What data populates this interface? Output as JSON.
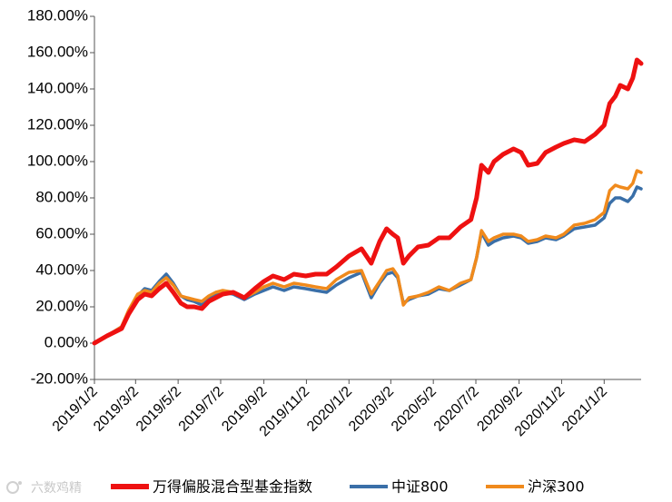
{
  "watermark": "六数鸡精",
  "chart_data": {
    "type": "line",
    "title": "",
    "xlabel": "",
    "ylabel": "",
    "ylim": [
      -0.2,
      1.8
    ],
    "y_ticks": [
      -0.2,
      0,
      0.2,
      0.4,
      0.6,
      0.8,
      1.0,
      1.2,
      1.4,
      1.6,
      1.8
    ],
    "y_tick_labels": [
      "-20.00%",
      "0.00%",
      "20.00%",
      "40.00%",
      "60.00%",
      "80.00%",
      "100.00%",
      "120.00%",
      "140.00%",
      "160.00%",
      "180.00%"
    ],
    "x_ticks": [
      "2019/1/2",
      "2019/3/2",
      "2019/5/2",
      "2019/7/2",
      "2019/9/2",
      "2019/11/2",
      "2020/1/2",
      "2020/3/2",
      "2020/5/2",
      "2020/7/2",
      "2020/9/2",
      "2020/11/2",
      "2021/1/2"
    ],
    "x_range": [
      "2019-01-02",
      "2021-02-24"
    ],
    "grid": false,
    "legend": "bottom",
    "series": [
      {
        "name": "万得偏股混合型基金指数",
        "color": "#ee1111",
        "points": [
          [
            "2019-01-02",
            0.0
          ],
          [
            "2019-01-20",
            0.04
          ],
          [
            "2019-02-10",
            0.08
          ],
          [
            "2019-02-20",
            0.16
          ],
          [
            "2019-03-05",
            0.24
          ],
          [
            "2019-03-15",
            0.27
          ],
          [
            "2019-03-25",
            0.26
          ],
          [
            "2019-04-05",
            0.3
          ],
          [
            "2019-04-15",
            0.33
          ],
          [
            "2019-04-25",
            0.28
          ],
          [
            "2019-05-06",
            0.22
          ],
          [
            "2019-05-15",
            0.2
          ],
          [
            "2019-05-25",
            0.2
          ],
          [
            "2019-06-05",
            0.19
          ],
          [
            "2019-06-15",
            0.23
          ],
          [
            "2019-06-25",
            0.25
          ],
          [
            "2019-07-05",
            0.27
          ],
          [
            "2019-07-20",
            0.28
          ],
          [
            "2019-08-05",
            0.25
          ],
          [
            "2019-08-20",
            0.3
          ],
          [
            "2019-09-02",
            0.34
          ],
          [
            "2019-09-15",
            0.37
          ],
          [
            "2019-10-01",
            0.35
          ],
          [
            "2019-10-15",
            0.38
          ],
          [
            "2019-11-01",
            0.37
          ],
          [
            "2019-11-15",
            0.38
          ],
          [
            "2019-12-01",
            0.38
          ],
          [
            "2019-12-15",
            0.42
          ],
          [
            "2020-01-02",
            0.48
          ],
          [
            "2020-01-20",
            0.52
          ],
          [
            "2020-02-03",
            0.44
          ],
          [
            "2020-02-15",
            0.56
          ],
          [
            "2020-02-25",
            0.63
          ],
          [
            "2020-03-05",
            0.6
          ],
          [
            "2020-03-12",
            0.58
          ],
          [
            "2020-03-20",
            0.44
          ],
          [
            "2020-03-28",
            0.48
          ],
          [
            "2020-04-10",
            0.53
          ],
          [
            "2020-04-25",
            0.54
          ],
          [
            "2020-05-10",
            0.58
          ],
          [
            "2020-05-25",
            0.58
          ],
          [
            "2020-06-10",
            0.64
          ],
          [
            "2020-06-25",
            0.68
          ],
          [
            "2020-07-03",
            0.8
          ],
          [
            "2020-07-10",
            0.98
          ],
          [
            "2020-07-20",
            0.94
          ],
          [
            "2020-07-28",
            1.0
          ],
          [
            "2020-08-10",
            1.04
          ],
          [
            "2020-08-25",
            1.07
          ],
          [
            "2020-09-05",
            1.05
          ],
          [
            "2020-09-15",
            0.98
          ],
          [
            "2020-09-28",
            0.99
          ],
          [
            "2020-10-10",
            1.05
          ],
          [
            "2020-10-25",
            1.08
          ],
          [
            "2020-11-05",
            1.1
          ],
          [
            "2020-11-20",
            1.12
          ],
          [
            "2020-12-05",
            1.11
          ],
          [
            "2020-12-20",
            1.15
          ],
          [
            "2021-01-02",
            1.2
          ],
          [
            "2021-01-10",
            1.32
          ],
          [
            "2021-01-18",
            1.36
          ],
          [
            "2021-01-25",
            1.42
          ],
          [
            "2021-02-05",
            1.4
          ],
          [
            "2021-02-12",
            1.46
          ],
          [
            "2021-02-18",
            1.56
          ],
          [
            "2021-02-24",
            1.54
          ]
        ]
      },
      {
        "name": "中证800",
        "color": "#3a6fa8",
        "points": [
          [
            "2019-01-02",
            0.0
          ],
          [
            "2019-01-20",
            0.04
          ],
          [
            "2019-02-10",
            0.09
          ],
          [
            "2019-02-20",
            0.17
          ],
          [
            "2019-03-05",
            0.26
          ],
          [
            "2019-03-15",
            0.3
          ],
          [
            "2019-03-25",
            0.29
          ],
          [
            "2019-04-05",
            0.34
          ],
          [
            "2019-04-15",
            0.38
          ],
          [
            "2019-04-25",
            0.33
          ],
          [
            "2019-05-06",
            0.26
          ],
          [
            "2019-05-15",
            0.24
          ],
          [
            "2019-05-25",
            0.23
          ],
          [
            "2019-06-05",
            0.21
          ],
          [
            "2019-06-15",
            0.25
          ],
          [
            "2019-06-25",
            0.27
          ],
          [
            "2019-07-05",
            0.28
          ],
          [
            "2019-07-20",
            0.27
          ],
          [
            "2019-08-05",
            0.24
          ],
          [
            "2019-08-20",
            0.27
          ],
          [
            "2019-09-02",
            0.29
          ],
          [
            "2019-09-15",
            0.31
          ],
          [
            "2019-10-01",
            0.29
          ],
          [
            "2019-10-15",
            0.31
          ],
          [
            "2019-11-01",
            0.3
          ],
          [
            "2019-11-15",
            0.29
          ],
          [
            "2019-12-01",
            0.28
          ],
          [
            "2019-12-15",
            0.32
          ],
          [
            "2020-01-02",
            0.36
          ],
          [
            "2020-01-20",
            0.39
          ],
          [
            "2020-02-03",
            0.25
          ],
          [
            "2020-02-15",
            0.33
          ],
          [
            "2020-02-25",
            0.38
          ],
          [
            "2020-03-05",
            0.39
          ],
          [
            "2020-03-12",
            0.36
          ],
          [
            "2020-03-20",
            0.22
          ],
          [
            "2020-03-28",
            0.24
          ],
          [
            "2020-04-10",
            0.26
          ],
          [
            "2020-04-25",
            0.27
          ],
          [
            "2020-05-10",
            0.3
          ],
          [
            "2020-05-25",
            0.29
          ],
          [
            "2020-06-10",
            0.32
          ],
          [
            "2020-06-25",
            0.35
          ],
          [
            "2020-07-03",
            0.47
          ],
          [
            "2020-07-10",
            0.61
          ],
          [
            "2020-07-20",
            0.54
          ],
          [
            "2020-07-28",
            0.56
          ],
          [
            "2020-08-10",
            0.58
          ],
          [
            "2020-08-25",
            0.59
          ],
          [
            "2020-09-05",
            0.58
          ],
          [
            "2020-09-15",
            0.55
          ],
          [
            "2020-09-28",
            0.56
          ],
          [
            "2020-10-10",
            0.58
          ],
          [
            "2020-10-25",
            0.57
          ],
          [
            "2020-11-05",
            0.59
          ],
          [
            "2020-11-20",
            0.63
          ],
          [
            "2020-12-05",
            0.64
          ],
          [
            "2020-12-20",
            0.65
          ],
          [
            "2021-01-02",
            0.69
          ],
          [
            "2021-01-10",
            0.77
          ],
          [
            "2021-01-18",
            0.8
          ],
          [
            "2021-01-25",
            0.8
          ],
          [
            "2021-02-05",
            0.78
          ],
          [
            "2021-02-12",
            0.81
          ],
          [
            "2021-02-18",
            0.86
          ],
          [
            "2021-02-24",
            0.85
          ]
        ]
      },
      {
        "name": "沪深300",
        "color": "#f08a1c",
        "points": [
          [
            "2019-01-02",
            0.0
          ],
          [
            "2019-01-20",
            0.04
          ],
          [
            "2019-02-10",
            0.09
          ],
          [
            "2019-02-20",
            0.18
          ],
          [
            "2019-03-05",
            0.27
          ],
          [
            "2019-03-15",
            0.29
          ],
          [
            "2019-03-25",
            0.28
          ],
          [
            "2019-04-05",
            0.33
          ],
          [
            "2019-04-15",
            0.36
          ],
          [
            "2019-04-25",
            0.32
          ],
          [
            "2019-05-06",
            0.26
          ],
          [
            "2019-05-15",
            0.25
          ],
          [
            "2019-05-25",
            0.24
          ],
          [
            "2019-06-05",
            0.23
          ],
          [
            "2019-06-15",
            0.26
          ],
          [
            "2019-06-25",
            0.28
          ],
          [
            "2019-07-05",
            0.29
          ],
          [
            "2019-07-20",
            0.28
          ],
          [
            "2019-08-05",
            0.25
          ],
          [
            "2019-08-20",
            0.28
          ],
          [
            "2019-09-02",
            0.31
          ],
          [
            "2019-09-15",
            0.33
          ],
          [
            "2019-10-01",
            0.31
          ],
          [
            "2019-10-15",
            0.33
          ],
          [
            "2019-11-01",
            0.32
          ],
          [
            "2019-11-15",
            0.31
          ],
          [
            "2019-12-01",
            0.3
          ],
          [
            "2019-12-15",
            0.35
          ],
          [
            "2020-01-02",
            0.39
          ],
          [
            "2020-01-20",
            0.4
          ],
          [
            "2020-02-03",
            0.27
          ],
          [
            "2020-02-15",
            0.34
          ],
          [
            "2020-02-25",
            0.4
          ],
          [
            "2020-03-05",
            0.41
          ],
          [
            "2020-03-12",
            0.37
          ],
          [
            "2020-03-20",
            0.21
          ],
          [
            "2020-03-28",
            0.25
          ],
          [
            "2020-04-10",
            0.26
          ],
          [
            "2020-04-25",
            0.28
          ],
          [
            "2020-05-10",
            0.31
          ],
          [
            "2020-05-25",
            0.29
          ],
          [
            "2020-06-10",
            0.33
          ],
          [
            "2020-06-25",
            0.35
          ],
          [
            "2020-07-03",
            0.47
          ],
          [
            "2020-07-10",
            0.62
          ],
          [
            "2020-07-20",
            0.56
          ],
          [
            "2020-07-28",
            0.58
          ],
          [
            "2020-08-10",
            0.6
          ],
          [
            "2020-08-25",
            0.6
          ],
          [
            "2020-09-05",
            0.59
          ],
          [
            "2020-09-15",
            0.56
          ],
          [
            "2020-09-28",
            0.57
          ],
          [
            "2020-10-10",
            0.59
          ],
          [
            "2020-10-25",
            0.58
          ],
          [
            "2020-11-05",
            0.6
          ],
          [
            "2020-11-20",
            0.65
          ],
          [
            "2020-12-05",
            0.66
          ],
          [
            "2020-12-20",
            0.68
          ],
          [
            "2021-01-02",
            0.72
          ],
          [
            "2021-01-10",
            0.84
          ],
          [
            "2021-01-18",
            0.87
          ],
          [
            "2021-01-25",
            0.86
          ],
          [
            "2021-02-05",
            0.85
          ],
          [
            "2021-02-12",
            0.88
          ],
          [
            "2021-02-18",
            0.95
          ],
          [
            "2021-02-24",
            0.94
          ]
        ]
      }
    ]
  }
}
